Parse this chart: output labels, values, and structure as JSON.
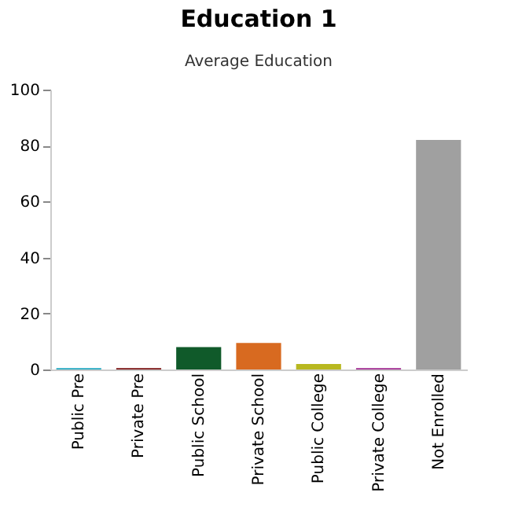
{
  "chart_data": {
    "type": "bar",
    "title": "Education 1",
    "subtitle": "Average Education",
    "categories": [
      "Public Pre",
      "Private Pre",
      "Public School",
      "Private School",
      "Public College",
      "Private College",
      "Not Enrolled"
    ],
    "values": [
      0.5,
      0.5,
      8,
      9.5,
      2,
      0.5,
      82
    ],
    "colors": [
      "#20a8c0",
      "#7a1010",
      "#105a2a",
      "#d86a20",
      "#b8b820",
      "#a02890",
      "#a0a0a0"
    ],
    "ylim": [
      0,
      100
    ],
    "yticks": [
      0,
      20,
      40,
      60,
      80,
      100
    ],
    "grid": false
  }
}
